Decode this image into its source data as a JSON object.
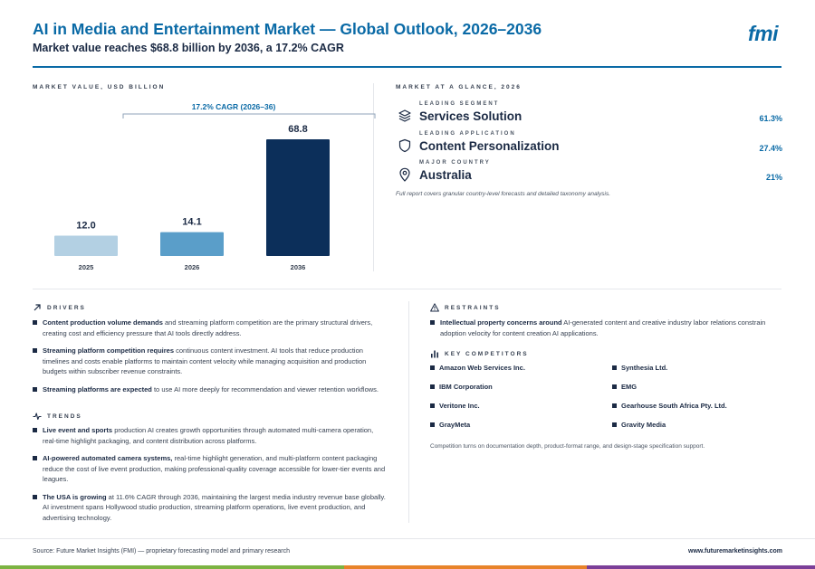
{
  "header": {
    "title": "AI in Media and Entertainment Market — Global Outlook, 2026–2036",
    "subtitle": "Market value reaches $68.8 billion by 2036, a 17.2% CAGR",
    "logo": "fmi"
  },
  "market_value": {
    "heading": "MARKET VALUE, USD BILLION",
    "cagr_label": "17.2% CAGR (2026–36)"
  },
  "chart_data": {
    "type": "bar",
    "title": "MARKET VALUE, USD BILLION",
    "categories": [
      "2025",
      "2026",
      "2036"
    ],
    "values": [
      12.0,
      14.1,
      68.8
    ],
    "value_labels": [
      "12.0",
      "14.1",
      "68.8"
    ],
    "bar_colors": [
      "#b3d0e3",
      "#5a9ec9",
      "#0c2f5a"
    ],
    "annotation": "17.2% CAGR (2026–36)",
    "ylim": [
      0,
      68.8
    ],
    "grid": false,
    "legend": "none"
  },
  "glance": {
    "heading": "MARKET AT A GLANCE, 2026",
    "items": [
      {
        "label": "LEADING SEGMENT",
        "name": "Services Solution",
        "value": "61.3%",
        "icon": "layers-icon"
      },
      {
        "label": "LEADING APPLICATION",
        "name": "Content Personalization",
        "value": "27.4%",
        "icon": "shield-icon"
      },
      {
        "label": "MAJOR COUNTRY",
        "name": "Australia",
        "value": "21%",
        "icon": "map-pin-icon"
      }
    ],
    "note": "Full report covers granular country-level forecasts and detailed taxonomy analysis."
  },
  "drivers": {
    "heading": "DRIVERS",
    "items": [
      {
        "bold": "Content production volume demands",
        "text": " and streaming platform competition are the primary structural drivers, creating cost and efficiency pressure that AI tools directly address."
      },
      {
        "bold": "Streaming platform competition requires",
        "text": " continuous content investment. AI tools that reduce production timelines and costs enable platforms to maintain content velocity while managing acquisition and production budgets within subscriber revenue constraints."
      },
      {
        "bold": "Streaming platforms are expected",
        "text": " to use AI more deeply for recommendation and viewer retention workflows."
      }
    ]
  },
  "trends": {
    "heading": "TRENDS",
    "items": [
      {
        "bold": "Live event and sports",
        "text": " production AI creates growth opportunities through automated multi-camera operation, real-time highlight packaging, and content distribution across platforms."
      },
      {
        "bold": "AI-powered automated camera systems,",
        "text": " real-time highlight generation, and multi-platform content packaging reduce the cost of live event production, making professional-quality coverage accessible for lower-tier events and leagues."
      },
      {
        "bold": "The USA is growing",
        "text": " at 11.6% CAGR through 2036, maintaining the largest media industry revenue base globally. AI investment spans Hollywood studio production, streaming platform operations, live event production, and advertising technology."
      }
    ]
  },
  "restraints": {
    "heading": "RESTRAINTS",
    "items": [
      {
        "bold": "Intellectual property concerns around",
        "text": " AI-generated content and creative industry labor relations constrain adoption velocity for content creation AI applications."
      }
    ]
  },
  "competitors": {
    "heading": "KEY COMPETITORS",
    "items": [
      "Amazon Web Services Inc.",
      "Synthesia Ltd.",
      "IBM Corporation",
      "EMG",
      "Veritone Inc.",
      "Gearhouse South Africa Pty. Ltd.",
      "GrayMeta",
      "Gravity Media"
    ],
    "note": "Competition turns on documentation depth, product-format range, and design-stage specification support."
  },
  "footer": {
    "source": "Source: Future Market Insights (FMI) — proprietary forecasting model and primary research",
    "url": "www.futuremarketinsights.com"
  },
  "colors": {
    "accent": "#0a6aa6",
    "navy": "#1b2a44",
    "band_green": "#7cb342",
    "band_orange": "#e8832a",
    "band_purple": "#7b3f98"
  }
}
